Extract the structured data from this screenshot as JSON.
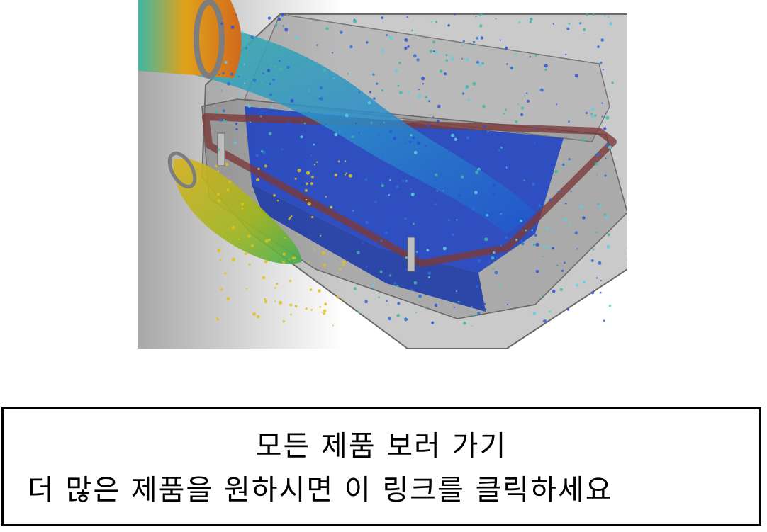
{
  "product_image": {
    "alt": "Air filter housing flow simulation",
    "colors": {
      "background_gradient_start": "#a8a8a8",
      "background_gradient_end": "#ffffff",
      "housing": "#7c7c7c",
      "gasket": "#7a3a3a",
      "filter_media": "#1a3fc4",
      "flow_fast": "#e0a21a",
      "flow_mid": "#3fb7a6",
      "flow_slow": "#2b6fd6"
    }
  },
  "link_box": {
    "title": "모든 제품 보러 가기",
    "subtitle": "더 많은 제품을 원하시면 이 링크를 클릭하세요"
  }
}
